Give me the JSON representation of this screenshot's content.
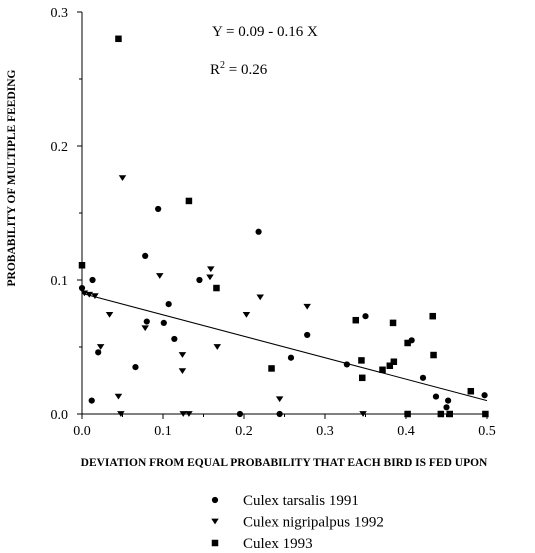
{
  "chart_data": {
    "type": "scatter",
    "xlabel": "DEVIATION FROM EQUAL PROBABILITY THAT EACH BIRD IS FED UPON",
    "ylabel": "PROBABILITY OF MULTIPLE FEEDING",
    "xlim": [
      0,
      0.5
    ],
    "ylim": [
      0,
      0.3
    ],
    "xticks": [
      "0.0",
      "0.1",
      "0.2",
      "0.3",
      "0.4",
      "0.5"
    ],
    "yticks": [
      "0.0",
      "0.1",
      "0.2",
      "0.3"
    ],
    "grid": false,
    "annotations": {
      "equation": "Y = 0.09 - 0.16 X",
      "r2_prefix": "R",
      "r2_sup": "2",
      "r2_suffix": " = 0.26"
    },
    "regression_line": {
      "intercept": 0.09,
      "slope": -0.16,
      "x_range": [
        0,
        0.5
      ]
    },
    "legend_position": "bottom",
    "series": [
      {
        "name": "Culex tarsalis 1991",
        "marker": "circle",
        "points": [
          [
            0.0,
            0.094
          ],
          [
            0.012,
            0.01
          ],
          [
            0.013,
            0.1
          ],
          [
            0.02,
            0.046
          ],
          [
            0.066,
            0.035
          ],
          [
            0.08,
            0.069
          ],
          [
            0.078,
            0.118
          ],
          [
            0.094,
            0.153
          ],
          [
            0.101,
            0.068
          ],
          [
            0.107,
            0.082
          ],
          [
            0.114,
            0.056
          ],
          [
            0.145,
            0.1
          ],
          [
            0.195,
            0.0
          ],
          [
            0.218,
            0.136
          ],
          [
            0.244,
            0.0
          ],
          [
            0.258,
            0.042
          ],
          [
            0.278,
            0.059
          ],
          [
            0.327,
            0.037
          ],
          [
            0.35,
            0.073
          ],
          [
            0.407,
            0.055
          ],
          [
            0.421,
            0.027
          ],
          [
            0.437,
            0.013
          ],
          [
            0.45,
            0.005
          ],
          [
            0.452,
            0.01
          ],
          [
            0.497,
            0.014
          ]
        ]
      },
      {
        "name": "Culex nigripalpus 1992",
        "marker": "triangle-down",
        "points": [
          [
            0.003,
            0.09
          ],
          [
            0.009,
            0.089
          ],
          [
            0.016,
            0.088
          ],
          [
            0.023,
            0.05
          ],
          [
            0.034,
            0.074
          ],
          [
            0.045,
            0.013
          ],
          [
            0.05,
            0.176
          ],
          [
            0.048,
            0.0
          ],
          [
            0.078,
            0.064
          ],
          [
            0.096,
            0.103
          ],
          [
            0.124,
            0.044
          ],
          [
            0.124,
            0.032
          ],
          [
            0.125,
            0.0
          ],
          [
            0.132,
            0.0
          ],
          [
            0.158,
            0.102
          ],
          [
            0.159,
            0.108
          ],
          [
            0.167,
            0.05
          ],
          [
            0.203,
            0.074
          ],
          [
            0.22,
            0.087
          ],
          [
            0.244,
            0.011
          ],
          [
            0.278,
            0.08
          ],
          [
            0.347,
            0.0
          ]
        ]
      },
      {
        "name": "Culex 1993",
        "marker": "square",
        "points": [
          [
            0.0,
            0.111
          ],
          [
            0.045,
            0.28
          ],
          [
            0.132,
            0.159
          ],
          [
            0.166,
            0.094
          ],
          [
            0.234,
            0.034
          ],
          [
            0.338,
            0.07
          ],
          [
            0.345,
            0.04
          ],
          [
            0.346,
            0.027
          ],
          [
            0.371,
            0.033
          ],
          [
            0.38,
            0.036
          ],
          [
            0.385,
            0.039
          ],
          [
            0.384,
            0.068
          ],
          [
            0.402,
            0.0
          ],
          [
            0.402,
            0.053
          ],
          [
            0.433,
            0.073
          ],
          [
            0.434,
            0.044
          ],
          [
            0.443,
            0.0
          ],
          [
            0.454,
            0.0
          ],
          [
            0.48,
            0.017
          ],
          [
            0.498,
            0.0
          ]
        ]
      }
    ]
  }
}
